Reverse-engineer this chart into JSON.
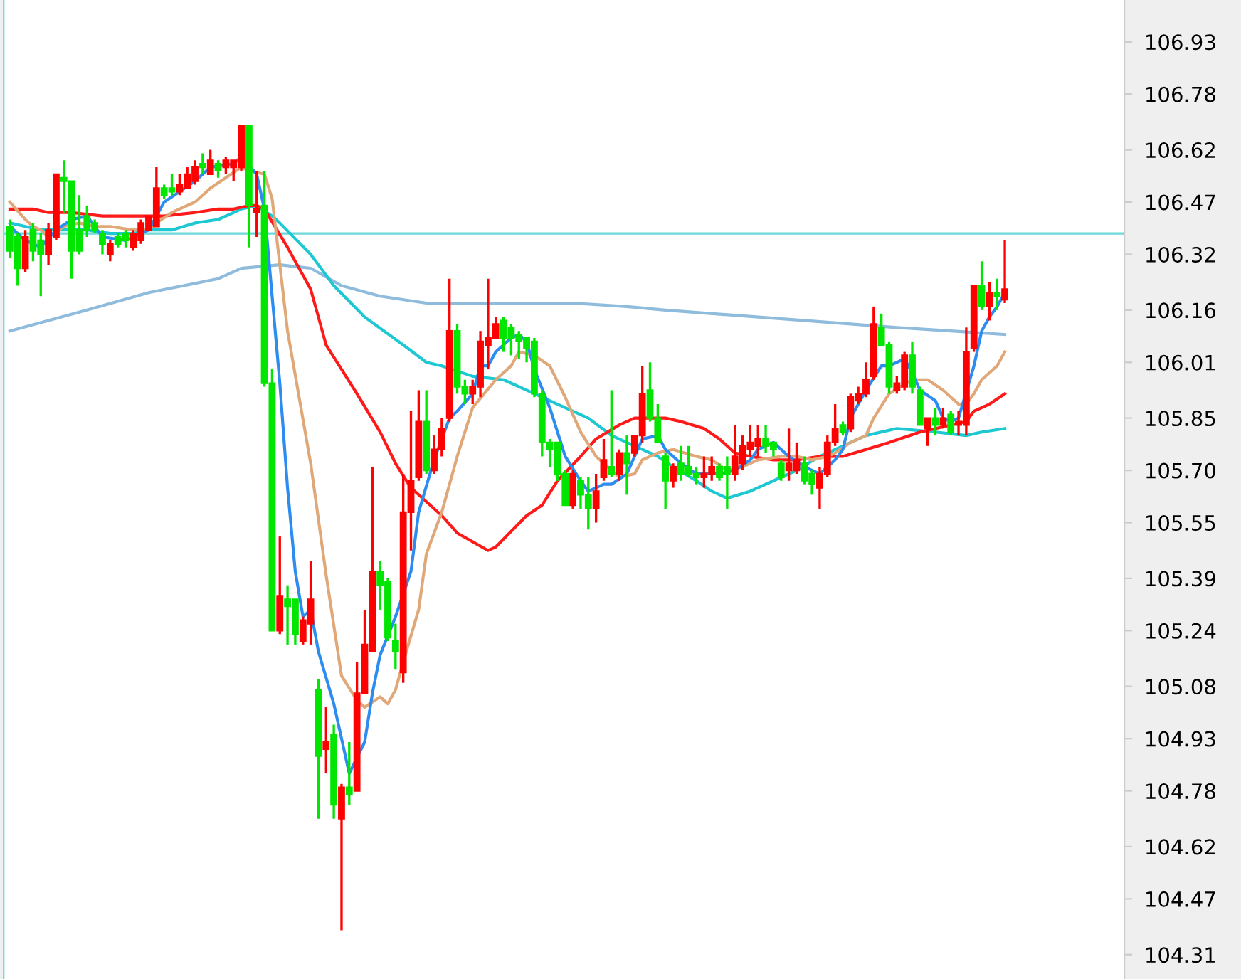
{
  "chart_data": {
    "type": "candlestick",
    "categories": [
      null,
      null,
      null,
      null,
      null,
      null,
      null,
      null,
      null,
      null,
      null,
      null,
      null,
      null,
      null,
      null,
      null,
      null,
      null,
      null,
      null,
      null,
      null,
      null,
      null,
      null,
      null,
      null,
      null,
      null,
      null,
      null,
      null,
      null,
      null,
      null,
      null,
      null,
      null,
      null,
      null,
      null,
      null,
      null,
      null,
      null,
      null,
      null,
      null,
      null,
      null,
      null,
      null,
      null,
      null,
      null,
      null,
      null,
      null,
      null,
      null,
      null,
      null,
      null,
      null,
      null,
      null,
      null,
      null,
      null,
      null,
      null,
      null,
      null,
      null,
      null,
      null,
      null,
      null,
      null,
      null,
      null,
      null,
      null,
      null,
      null,
      null,
      null,
      null,
      null,
      null,
      null,
      null,
      null,
      null,
      null,
      null,
      null,
      null,
      null,
      null,
      null,
      null,
      null,
      null,
      null,
      null,
      null,
      null,
      null,
      null,
      null,
      null,
      null,
      null,
      null,
      null,
      null,
      null,
      null,
      null,
      null,
      null,
      null,
      null,
      null,
      null,
      null,
      null,
      null
    ],
    "ohlc": [
      [
        106.4,
        106.42,
        106.31,
        106.33
      ],
      [
        106.37,
        106.38,
        106.23,
        106.28
      ],
      [
        106.28,
        106.39,
        106.27,
        106.37
      ],
      [
        106.39,
        106.41,
        106.3,
        106.33
      ],
      [
        106.36,
        106.38,
        106.2,
        106.32
      ],
      [
        106.32,
        106.41,
        106.29,
        106.39
      ],
      [
        106.37,
        106.55,
        106.36,
        106.55
      ],
      [
        106.54,
        106.59,
        106.44,
        106.53
      ],
      [
        106.53,
        106.53,
        106.25,
        106.33
      ],
      [
        106.39,
        106.49,
        106.32,
        106.33
      ],
      [
        106.43,
        106.46,
        106.37,
        106.39
      ],
      [
        106.41,
        106.42,
        106.38,
        106.39
      ],
      [
        106.38,
        106.39,
        106.32,
        106.35
      ],
      [
        106.32,
        106.36,
        106.3,
        106.35
      ],
      [
        106.37,
        106.38,
        106.34,
        106.35
      ],
      [
        106.38,
        106.39,
        106.34,
        106.36
      ],
      [
        106.34,
        106.39,
        106.33,
        106.38
      ],
      [
        106.36,
        106.42,
        106.35,
        106.41
      ],
      [
        106.39,
        106.43,
        106.39,
        106.43
      ],
      [
        106.4,
        106.57,
        106.4,
        106.51
      ],
      [
        106.51,
        106.52,
        106.48,
        106.49
      ],
      [
        106.51,
        106.55,
        106.49,
        106.5
      ],
      [
        106.5,
        106.55,
        106.49,
        106.52
      ],
      [
        106.51,
        106.57,
        106.51,
        106.55
      ],
      [
        106.53,
        106.59,
        106.52,
        106.57
      ],
      [
        106.58,
        106.61,
        106.55,
        106.57
      ],
      [
        106.55,
        106.62,
        106.55,
        106.59
      ],
      [
        106.58,
        106.59,
        106.54,
        106.56
      ],
      [
        106.57,
        106.6,
        106.55,
        106.59
      ],
      [
        106.57,
        106.59,
        106.53,
        106.59
      ],
      [
        106.57,
        106.69,
        106.56,
        106.69
      ],
      [
        106.69,
        106.69,
        106.34,
        106.46
      ],
      [
        106.44,
        106.56,
        106.37,
        106.45
      ],
      [
        106.46,
        106.56,
        105.94,
        105.95
      ],
      [
        105.95,
        105.99,
        105.24,
        105.24
      ],
      [
        105.24,
        105.51,
        105.23,
        105.34
      ],
      [
        105.33,
        105.37,
        105.2,
        105.31
      ],
      [
        105.33,
        105.33,
        105.2,
        105.23
      ],
      [
        105.21,
        105.28,
        105.2,
        105.27
      ],
      [
        105.26,
        105.44,
        105.2,
        105.33
      ],
      [
        105.07,
        105.1,
        104.7,
        104.88
      ],
      [
        104.9,
        105.02,
        104.83,
        104.92
      ],
      [
        104.94,
        104.97,
        104.7,
        104.74
      ],
      [
        104.7,
        104.8,
        104.38,
        104.79
      ],
      [
        104.79,
        104.92,
        104.74,
        104.77
      ],
      [
        104.78,
        105.15,
        104.78,
        105.06
      ],
      [
        105.06,
        105.3,
        105.06,
        105.2
      ],
      [
        105.18,
        105.71,
        105.18,
        105.41
      ],
      [
        105.41,
        105.44,
        105.3,
        105.37
      ],
      [
        105.38,
        105.39,
        105.21,
        105.22
      ],
      [
        105.21,
        105.26,
        105.13,
        105.18
      ],
      [
        105.12,
        105.69,
        105.09,
        105.58
      ],
      [
        105.58,
        105.87,
        105.47,
        105.67
      ],
      [
        105.68,
        105.93,
        105.67,
        105.84
      ],
      [
        105.84,
        105.93,
        105.69,
        105.7
      ],
      [
        105.7,
        105.8,
        105.69,
        105.76
      ],
      [
        105.76,
        105.85,
        105.74,
        105.82
      ],
      [
        105.85,
        106.25,
        105.84,
        106.1
      ],
      [
        106.1,
        106.12,
        105.92,
        105.94
      ],
      [
        105.94,
        105.96,
        105.89,
        105.92
      ],
      [
        105.92,
        105.96,
        105.89,
        105.94
      ],
      [
        105.94,
        106.1,
        105.91,
        106.07
      ],
      [
        106.06,
        106.25,
        105.99,
        106.08
      ],
      [
        106.08,
        106.14,
        106.08,
        106.12
      ],
      [
        106.13,
        106.14,
        106.04,
        106.08
      ],
      [
        106.11,
        106.12,
        106.03,
        106.08
      ],
      [
        106.09,
        106.1,
        106.02,
        106.07
      ],
      [
        106.08,
        106.08,
        106.01,
        106.05
      ],
      [
        106.07,
        106.08,
        105.91,
        105.92
      ],
      [
        105.92,
        105.93,
        105.74,
        105.78
      ],
      [
        105.78,
        105.79,
        105.71,
        105.76
      ],
      [
        105.78,
        105.78,
        105.67,
        105.69
      ],
      [
        105.69,
        105.7,
        105.6,
        105.6
      ],
      [
        105.6,
        105.7,
        105.59,
        105.69
      ],
      [
        105.67,
        105.68,
        105.59,
        105.63
      ],
      [
        105.63,
        105.68,
        105.53,
        105.59
      ],
      [
        105.59,
        105.69,
        105.55,
        105.64
      ],
      [
        105.68,
        105.79,
        105.67,
        105.73
      ],
      [
        105.71,
        105.93,
        105.68,
        105.69
      ],
      [
        105.69,
        105.76,
        105.67,
        105.75
      ],
      [
        105.75,
        105.8,
        105.63,
        105.72
      ],
      [
        105.75,
        105.8,
        105.74,
        105.8
      ],
      [
        105.8,
        106.0,
        105.78,
        105.92
      ],
      [
        105.93,
        106.01,
        105.84,
        105.85
      ],
      [
        105.85,
        105.89,
        105.78,
        105.78
      ],
      [
        105.74,
        105.75,
        105.59,
        105.67
      ],
      [
        105.67,
        105.72,
        105.65,
        105.71
      ],
      [
        105.72,
        105.77,
        105.67,
        105.69
      ],
      [
        105.71,
        105.77,
        105.68,
        105.69
      ],
      [
        105.69,
        105.71,
        105.66,
        105.68
      ],
      [
        105.68,
        105.74,
        105.65,
        105.69
      ],
      [
        105.69,
        105.74,
        105.67,
        105.71
      ],
      [
        105.71,
        105.72,
        105.67,
        105.68
      ],
      [
        105.71,
        105.74,
        105.59,
        105.69
      ],
      [
        105.69,
        105.83,
        105.67,
        105.74
      ],
      [
        105.72,
        105.8,
        105.7,
        105.77
      ],
      [
        105.76,
        105.83,
        105.74,
        105.78
      ],
      [
        105.77,
        105.83,
        105.74,
        105.79
      ],
      [
        105.79,
        105.83,
        105.75,
        105.77
      ],
      [
        105.78,
        105.78,
        105.74,
        105.76
      ],
      [
        105.72,
        105.73,
        105.67,
        105.68
      ],
      [
        105.7,
        105.82,
        105.67,
        105.72
      ],
      [
        105.7,
        105.78,
        105.69,
        105.73
      ],
      [
        105.72,
        105.74,
        105.66,
        105.67
      ],
      [
        105.69,
        105.7,
        105.63,
        105.66
      ],
      [
        105.65,
        105.71,
        105.59,
        105.69
      ],
      [
        105.69,
        105.8,
        105.68,
        105.78
      ],
      [
        105.78,
        105.89,
        105.77,
        105.82
      ],
      [
        105.83,
        105.84,
        105.8,
        105.81
      ],
      [
        105.82,
        105.92,
        105.81,
        105.91
      ],
      [
        105.9,
        105.94,
        105.89,
        105.92
      ],
      [
        105.92,
        106.01,
        105.91,
        105.96
      ],
      [
        105.97,
        106.17,
        105.96,
        106.12
      ],
      [
        106.11,
        106.15,
        106.06,
        106.06
      ],
      [
        106.06,
        106.07,
        105.92,
        105.94
      ],
      [
        105.93,
        105.97,
        105.92,
        105.95
      ],
      [
        105.94,
        106.04,
        105.93,
        106.03
      ],
      [
        106.03,
        106.07,
        105.92,
        105.94
      ],
      [
        105.93,
        105.94,
        105.83,
        105.83
      ],
      [
        105.82,
        105.85,
        105.77,
        105.85
      ],
      [
        105.85,
        105.88,
        105.8,
        105.83
      ],
      [
        105.83,
        105.88,
        105.82,
        105.85
      ],
      [
        105.86,
        105.87,
        105.8,
        105.81
      ],
      [
        105.83,
        105.87,
        105.8,
        105.84
      ],
      [
        105.83,
        106.11,
        105.8,
        106.04
      ],
      [
        106.05,
        106.23,
        106.04,
        106.23
      ],
      [
        106.23,
        106.3,
        106.16,
        106.17
      ],
      [
        106.17,
        106.24,
        106.13,
        106.21
      ],
      [
        106.21,
        106.25,
        106.16,
        106.2
      ],
      [
        106.19,
        106.36,
        106.18,
        106.22
      ]
    ],
    "colors": [
      "#00e600",
      "#00e600",
      "#ff0000",
      "#00e600",
      "#00e600",
      "#ff0000",
      "#ff0000",
      "#00e600",
      "#00e600",
      "#00e600",
      "#00e600",
      "#00e600",
      "#00e600",
      "#ff0000",
      "#00e600",
      "#00e600",
      "#ff0000",
      "#ff0000",
      "#ff0000",
      "#ff0000",
      "#00e600",
      "#00e600",
      "#ff0000",
      "#ff0000",
      "#ff0000",
      "#00e600",
      "#ff0000",
      "#00e600",
      "#ff0000",
      "#ff0000",
      "#ff0000",
      "#00e600",
      "#ff0000",
      "#00e600",
      "#00e600",
      "#ff0000",
      "#00e600",
      "#00e600",
      "#ff0000",
      "#ff0000",
      "#00e600",
      "#ff0000",
      "#00e600",
      "#ff0000",
      "#00e600",
      "#ff0000",
      "#ff0000",
      "#ff0000",
      "#00e600",
      "#00e600",
      "#00e600",
      "#ff0000",
      "#ff0000",
      "#ff0000",
      "#00e600",
      "#ff0000",
      "#ff0000",
      "#ff0000",
      "#00e600",
      "#00e600",
      "#ff0000",
      "#ff0000",
      "#ff0000",
      "#ff0000",
      "#00e600",
      "#00e600",
      "#00e600",
      "#00e600",
      "#00e600",
      "#00e600",
      "#00e600",
      "#00e600",
      "#00e600",
      "#ff0000",
      "#00e600",
      "#00e600",
      "#ff0000",
      "#ff0000",
      "#00e600",
      "#ff0000",
      "#00e600",
      "#ff0000",
      "#ff0000",
      "#00e600",
      "#00e600",
      "#00e600",
      "#ff0000",
      "#00e600",
      "#00e600",
      "#00e600",
      "#ff0000",
      "#ff0000",
      "#00e600",
      "#00e600",
      "#ff0000",
      "#ff0000",
      "#ff0000",
      "#ff0000",
      "#00e600",
      "#00e600",
      "#00e600",
      "#ff0000",
      "#ff0000",
      "#00e600",
      "#00e600",
      "#ff0000",
      "#ff0000",
      "#ff0000",
      "#00e600",
      "#ff0000",
      "#ff0000",
      "#ff0000",
      "#ff0000",
      "#00e600",
      "#00e600",
      "#ff0000",
      "#ff0000",
      "#00e600",
      "#00e600",
      "#ff0000",
      "#00e600",
      "#ff0000",
      "#00e600",
      "#ff0000",
      "#ff0000",
      "#ff0000",
      "#00e600",
      "#ff0000",
      "#00e600",
      "#ff0000"
    ],
    "series": [
      {
        "type": "line",
        "color": "#8fbcdc",
        "values": [
          106.1,
          null,
          null,
          null,
          null,
          null,
          null,
          null,
          null,
          null,
          106.16,
          null,
          null,
          null,
          null,
          null,
          null,
          null,
          106.21,
          null,
          null,
          null,
          null,
          null,
          null,
          null,
          null,
          106.25,
          null,
          null,
          106.28,
          null,
          null,
          null,
          null,
          106.29,
          null,
          null,
          null,
          106.28,
          null,
          null,
          null,
          106.23,
          null,
          null,
          null,
          null,
          106.2,
          null,
          null,
          null,
          null,
          null,
          106.18,
          null,
          null,
          null,
          null,
          null,
          null,
          null,
          106.18,
          null,
          null,
          null,
          null,
          106.18,
          null,
          null,
          null,
          null,
          null,
          106.18,
          null,
          null,
          null,
          null,
          null,
          null,
          106.17,
          null,
          null,
          null,
          null,
          106.16,
          null,
          null,
          null,
          null,
          null,
          null,
          null,
          null,
          null,
          null,
          null,
          null,
          null,
          null,
          null,
          null,
          null,
          null,
          null,
          null,
          null,
          null,
          null,
          106.12,
          null,
          null,
          null,
          null,
          null,
          106.11,
          null,
          null,
          null,
          null,
          null,
          null,
          106.1,
          null,
          null,
          null,
          null,
          null,
          null,
          106.09
        ]
      },
      {
        "type": "line",
        "color": "#1ec8d2",
        "values": [
          106.41,
          null,
          106.4,
          null,
          106.39,
          null,
          null,
          106.39,
          null,
          null,
          106.39,
          null,
          null,
          106.38,
          null,
          null,
          106.38,
          null,
          106.39,
          null,
          null,
          106.39,
          null,
          null,
          106.41,
          null,
          null,
          106.42,
          null,
          null,
          106.45,
          null,
          106.46,
          null,
          106.43,
          106.41,
          null,
          null,
          null,
          106.32,
          null,
          null,
          106.23,
          null,
          null,
          null,
          106.14,
          null,
          null,
          null,
          null,
          106.06,
          null,
          null,
          106.01,
          null,
          106.0,
          null,
          null,
          null,
          105.97,
          null,
          null,
          null,
          105.96,
          null,
          null,
          105.93,
          null,
          null,
          null,
          105.89,
          null,
          null,
          null,
          105.85,
          null,
          null,
          105.8,
          null,
          null,
          null,
          105.76,
          null,
          105.74,
          null,
          105.71,
          null,
          null,
          105.67,
          null,
          105.64,
          null,
          105.62,
          null,
          null,
          105.64,
          null,
          null,
          105.67,
          null,
          null,
          105.7,
          null,
          null,
          105.74,
          null,
          null,
          105.77,
          null,
          null,
          105.8,
          null,
          null,
          null,
          105.82,
          null,
          null,
          null,
          null,
          105.81,
          null,
          null,
          null,
          105.8,
          null,
          105.81,
          null,
          null,
          105.82
        ]
      },
      {
        "type": "line",
        "color": "#ff1a1a",
        "values": [
          106.45,
          null,
          null,
          106.45,
          null,
          106.44,
          null,
          null,
          106.44,
          null,
          null,
          null,
          106.43,
          null,
          null,
          106.43,
          null,
          null,
          106.43,
          null,
          106.43,
          null,
          null,
          null,
          106.44,
          null,
          null,
          106.45,
          null,
          106.45,
          null,
          106.46,
          106.46,
          106.45,
          null,
          null,
          106.34,
          null,
          null,
          106.22,
          null,
          106.06,
          null,
          null,
          null,
          105.92,
          null,
          null,
          105.81,
          null,
          105.72,
          null,
          105.65,
          null,
          null,
          null,
          105.57,
          null,
          105.52,
          null,
          null,
          null,
          105.47,
          105.48,
          null,
          null,
          null,
          105.57,
          null,
          105.6,
          null,
          105.67,
          null,
          null,
          105.74,
          null,
          105.79,
          null,
          null,
          105.83,
          null,
          105.85,
          null,
          null,
          105.85,
          105.85,
          null,
          105.84,
          null,
          null,
          105.82,
          null,
          105.79,
          null,
          105.75,
          null,
          105.74,
          null,
          null,
          105.73,
          null,
          null,
          105.73,
          null,
          null,
          105.74,
          null,
          null,
          105.74,
          null,
          null,
          105.76,
          null,
          null,
          105.78,
          null,
          null,
          null,
          105.81,
          null,
          null,
          null,
          105.83,
          null,
          105.84,
          105.87,
          null,
          105.89,
          null,
          105.92
        ]
      },
      {
        "type": "line",
        "color": "#e0a878",
        "values": [
          106.47,
          null,
          106.42,
          106.4,
          106.39,
          106.37,
          null,
          106.4,
          null,
          106.41,
          null,
          106.4,
          null,
          106.4,
          null,
          null,
          106.39,
          null,
          106.39,
          106.41,
          null,
          106.44,
          null,
          null,
          106.47,
          null,
          106.51,
          null,
          106.54,
          null,
          106.57,
          106.56,
          null,
          106.55,
          106.48,
          null,
          106.1,
          null,
          null,
          105.72,
          null,
          105.4,
          null,
          105.11,
          null,
          105.04,
          105.02,
          null,
          105.05,
          105.03,
          105.07,
          105.15,
          null,
          105.3,
          105.46,
          null,
          105.58,
          null,
          105.74,
          null,
          105.88,
          null,
          null,
          105.96,
          null,
          106.0,
          106.04,
          null,
          106.03,
          null,
          106.0,
          null,
          105.91,
          null,
          105.81,
          null,
          105.74,
          null,
          105.7,
          105.68,
          null,
          105.69,
          105.73,
          null,
          105.75,
          null,
          105.76,
          null,
          null,
          105.74,
          null,
          105.73,
          null,
          105.7,
          null,
          105.71,
          null,
          105.73,
          null,
          null,
          105.74,
          null,
          105.74,
          null,
          105.73,
          null,
          105.74,
          105.75,
          null,
          105.78,
          null,
          105.8,
          105.85,
          null,
          105.92,
          null,
          null,
          105.96,
          null,
          105.96,
          null,
          105.93,
          null,
          105.89,
          105.89,
          105.92,
          105.96,
          null,
          106.0,
          106.04
        ]
      },
      {
        "type": "line",
        "color": "#2d8cf0",
        "values": [
          106.4,
          null,
          106.36,
          null,
          106.34,
          null,
          106.39,
          null,
          106.42,
          null,
          106.43,
          null,
          106.37,
          null,
          null,
          106.36,
          null,
          null,
          106.39,
          null,
          106.47,
          null,
          null,
          null,
          106.53,
          null,
          106.57,
          null,
          null,
          106.58,
          106.6,
          null,
          106.55,
          106.45,
          null,
          105.95,
          105.65,
          105.41,
          105.28,
          105.3,
          105.18,
          null,
          105.03,
          null,
          104.83,
          null,
          104.92,
          105.06,
          105.17,
          null,
          105.28,
          null,
          105.41,
          105.58,
          null,
          105.73,
          null,
          105.85,
          105.87,
          null,
          105.92,
          106.0,
          106.0,
          106.04,
          null,
          106.08,
          106.09,
          106.07,
          105.99,
          null,
          105.88,
          null,
          105.74,
          null,
          105.67,
          105.64,
          null,
          105.66,
          105.66,
          null,
          105.69,
          105.74,
          105.79,
          null,
          105.8,
          105.76,
          null,
          105.72,
          null,
          105.69,
          null,
          null,
          105.69,
          null,
          105.7,
          null,
          105.73,
          105.76,
          null,
          105.78,
          null,
          105.74,
          null,
          105.71,
          null,
          105.69,
          null,
          105.73,
          105.76,
          105.85,
          null,
          105.93,
          null,
          106.0,
          106.0,
          null,
          106.02,
          105.98,
          105.93,
          null,
          105.9,
          105.85,
          105.84,
          105.85,
          null,
          106.0,
          106.1,
          106.14,
          106.17,
          106.21
        ]
      }
    ],
    "ylim": [
      104.24,
      107.05
    ],
    "yticks": [
      106.93,
      106.78,
      106.62,
      106.47,
      106.32,
      106.16,
      106.01,
      105.85,
      {
        "value": 105.7,
        "label": "105.70"
      },
      105.55,
      105.39,
      105.24,
      105.08,
      104.93,
      104.78,
      104.62,
      104.47,
      104.31
    ],
    "ref_lines": [
      {
        "axis": "y",
        "value": 106.38,
        "color": "#6dd8d8"
      }
    ],
    "grid": false,
    "legend": false
  }
}
